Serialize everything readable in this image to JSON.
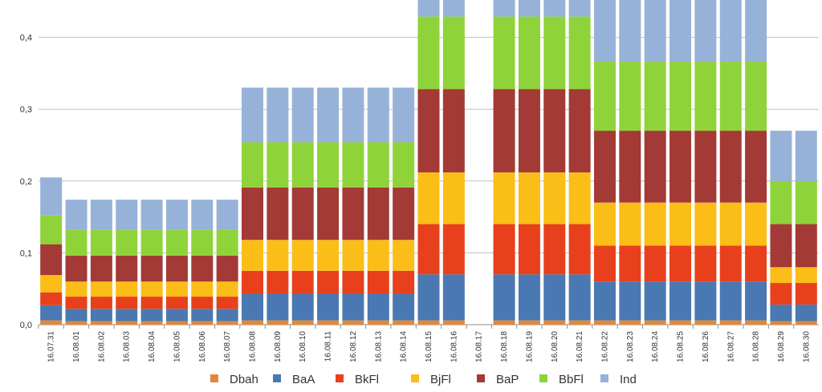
{
  "chart_data": {
    "type": "bar",
    "stacked": true,
    "title": "",
    "xlabel": "",
    "ylabel": "",
    "ylim": [
      0,
      0.45
    ],
    "y_ticks": [
      "0,0",
      "0,1",
      "0,2",
      "0,3",
      "0,4"
    ],
    "grid": true,
    "legend_position": "bottom",
    "categories": [
      "16.07.31",
      "16.08.01",
      "16.08.02",
      "16.08.03",
      "16.08.04",
      "16.08.05",
      "16.08.06",
      "16.08.07",
      "16.08.08",
      "16.08.09",
      "16.08.10",
      "16.08.11",
      "16.08.12",
      "16.08.13",
      "16.08.14",
      "16.08.15",
      "16.08.16",
      "16.08.17",
      "16.08.18",
      "16.08.19",
      "16.08.20",
      "16.08.21",
      "16.08.22",
      "16.08.23",
      "16.08.24",
      "16.08.25",
      "16.08.26",
      "16.08.27",
      "16.08.28",
      "16.08.29",
      "16.08.30"
    ],
    "series": [
      {
        "name": "Dbah",
        "color": "#e0893a",
        "values": [
          0.006,
          0.005,
          0.005,
          0.005,
          0.005,
          0.005,
          0.005,
          0.005,
          0.006,
          0.006,
          0.006,
          0.006,
          0.006,
          0.006,
          0.006,
          0.006,
          0.006,
          0,
          0.006,
          0.006,
          0.006,
          0.006,
          0.006,
          0.006,
          0.006,
          0.006,
          0.006,
          0.006,
          0.006,
          0.005,
          0.005
        ]
      },
      {
        "name": "BaA",
        "color": "#4a78b2",
        "values": [
          0.021,
          0.017,
          0.017,
          0.017,
          0.017,
          0.017,
          0.017,
          0.017,
          0.037,
          0.037,
          0.037,
          0.037,
          0.037,
          0.037,
          0.037,
          0.064,
          0.064,
          0,
          0.064,
          0.064,
          0.064,
          0.064,
          0.054,
          0.054,
          0.054,
          0.054,
          0.054,
          0.054,
          0.054,
          0.023,
          0.023
        ]
      },
      {
        "name": "BkFl",
        "color": "#e8401c",
        "values": [
          0.018,
          0.017,
          0.017,
          0.017,
          0.017,
          0.017,
          0.017,
          0.017,
          0.032,
          0.032,
          0.032,
          0.032,
          0.032,
          0.032,
          0.032,
          0.07,
          0.07,
          0,
          0.07,
          0.07,
          0.07,
          0.07,
          0.05,
          0.05,
          0.05,
          0.05,
          0.05,
          0.05,
          0.05,
          0.03,
          0.03
        ]
      },
      {
        "name": "BjFl",
        "color": "#fbbd18",
        "values": [
          0.024,
          0.021,
          0.021,
          0.021,
          0.021,
          0.021,
          0.021,
          0.021,
          0.043,
          0.043,
          0.043,
          0.043,
          0.043,
          0.043,
          0.043,
          0.072,
          0.072,
          0,
          0.072,
          0.072,
          0.072,
          0.072,
          0.06,
          0.06,
          0.06,
          0.06,
          0.06,
          0.06,
          0.06,
          0.022,
          0.022
        ]
      },
      {
        "name": "BaP",
        "color": "#a33a36",
        "values": [
          0.043,
          0.036,
          0.036,
          0.036,
          0.036,
          0.036,
          0.036,
          0.036,
          0.073,
          0.073,
          0.073,
          0.073,
          0.073,
          0.073,
          0.073,
          0.116,
          0.116,
          0,
          0.116,
          0.116,
          0.116,
          0.116,
          0.1,
          0.1,
          0.1,
          0.1,
          0.1,
          0.1,
          0.1,
          0.06,
          0.06
        ]
      },
      {
        "name": "BbFl",
        "color": "#8fd33a",
        "values": [
          0.04,
          0.036,
          0.036,
          0.036,
          0.036,
          0.036,
          0.036,
          0.036,
          0.063,
          0.063,
          0.063,
          0.063,
          0.063,
          0.063,
          0.063,
          0.101,
          0.101,
          0,
          0.101,
          0.101,
          0.101,
          0.101,
          0.096,
          0.096,
          0.096,
          0.096,
          0.096,
          0.096,
          0.096,
          0.06,
          0.06
        ]
      },
      {
        "name": "Ind",
        "color": "#97b2d9",
        "values": [
          0.053,
          0.042,
          0.042,
          0.042,
          0.042,
          0.042,
          0.042,
          0.042,
          0.076,
          0.076,
          0.076,
          0.076,
          0.076,
          0.076,
          0.076,
          0.071,
          0.071,
          0,
          0.071,
          0.071,
          0.071,
          0.071,
          0.134,
          0.134,
          0.134,
          0.134,
          0.134,
          0.134,
          0.134,
          0.07,
          0.07
        ]
      }
    ]
  }
}
